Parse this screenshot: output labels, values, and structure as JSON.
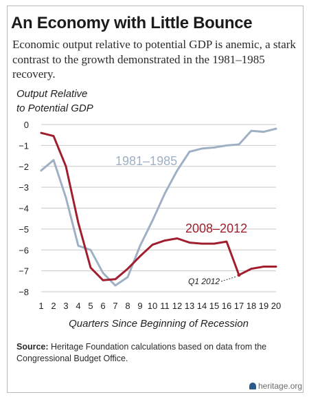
{
  "title": "An Economy with Little Bounce",
  "subtitle": "Economic output relative to potential GDP is anemic, a stark contrast to the growth demonstrated in the 1981–1985 recovery.",
  "chart_data": {
    "type": "line",
    "ylabel_line1": "Output Relative",
    "ylabel_line2": "to Potential GDP",
    "xlabel": "Quarters Since Beginning of Recession",
    "x": [
      1,
      2,
      3,
      4,
      5,
      6,
      7,
      8,
      9,
      10,
      11,
      12,
      13,
      14,
      15,
      16,
      17,
      18,
      19,
      20
    ],
    "ylim": [
      -8,
      0
    ],
    "yticks": [
      0,
      -1,
      -2,
      -3,
      -4,
      -5,
      -6,
      -7,
      -8
    ],
    "grid": "horizontal",
    "series": [
      {
        "name": "1981–1985",
        "color": "#9fb0c4",
        "values": [
          -2.2,
          -1.7,
          -3.5,
          -5.8,
          -6.0,
          -7.1,
          -7.7,
          -7.3,
          -5.8,
          -4.6,
          -3.3,
          -2.2,
          -1.3,
          -1.15,
          -1.1,
          -1.0,
          -0.95,
          -0.3,
          -0.35,
          -0.2
        ]
      },
      {
        "name": "2008–2012",
        "color": "#a01e2d",
        "values": [
          -0.4,
          -0.55,
          -2.0,
          -4.7,
          -6.85,
          -7.45,
          -7.4,
          -6.9,
          -6.3,
          -5.75,
          -5.55,
          -5.45,
          -5.65,
          -5.7,
          -5.7,
          -5.6,
          -7.2,
          -6.9,
          -6.8,
          -6.8
        ]
      }
    ],
    "annotations": [
      {
        "text": "Q1 2012",
        "x": 17,
        "y": -7.2
      }
    ]
  },
  "source_label": "Source:",
  "source_text": "Heritage Foundation calculations based on data from the Congressional Budget Office.",
  "brand": "heritage.org"
}
